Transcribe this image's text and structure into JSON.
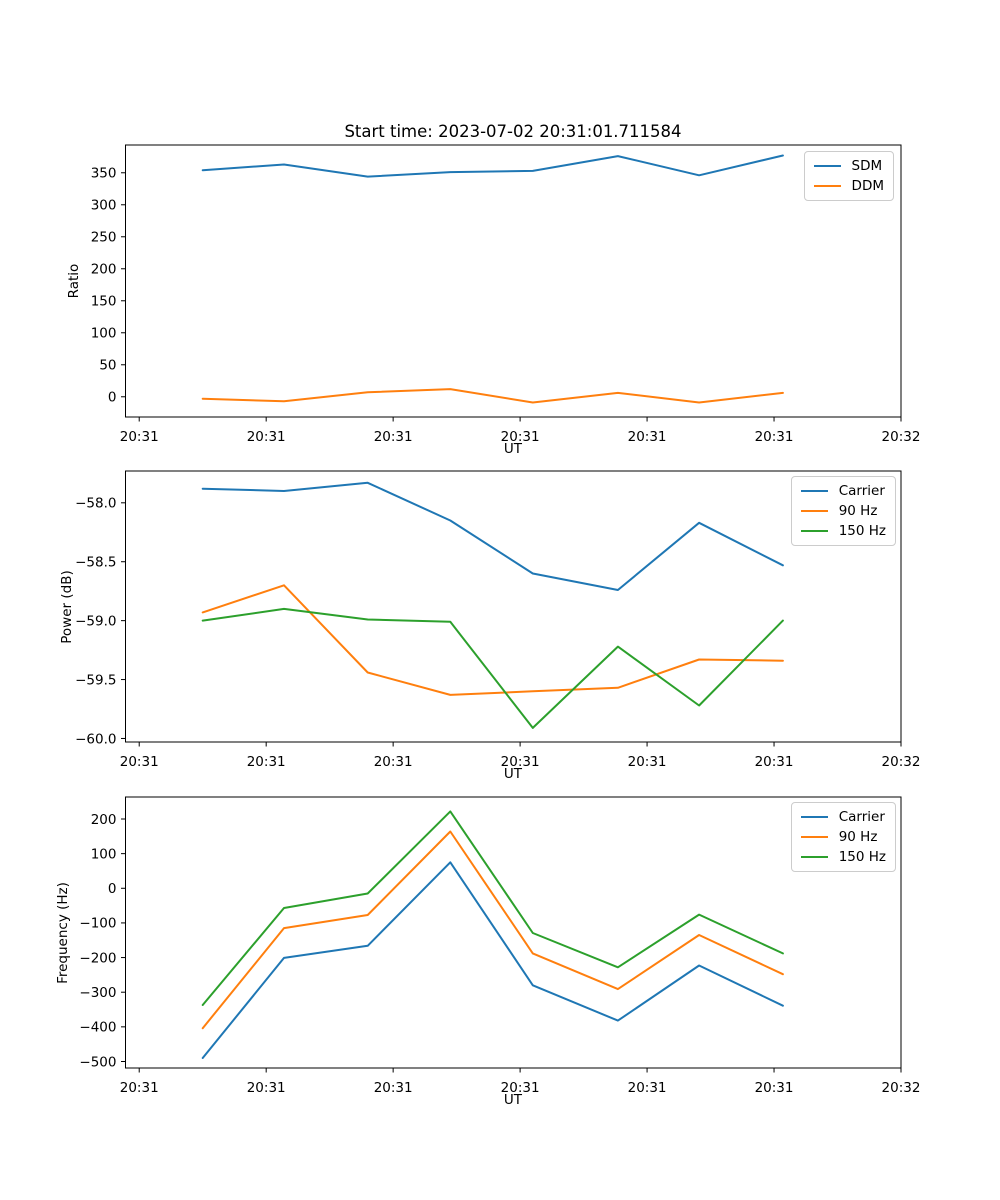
{
  "figure": {
    "title": "Start time: 2023-07-02 20:31:01.711584",
    "legend_border_color": "#cccccc",
    "spine_color": "#000000"
  },
  "chart_data": [
    {
      "type": "line",
      "name": "ratio",
      "title": "",
      "xlabel": "UT",
      "ylabel": "Ratio",
      "grid": false,
      "legend_position": "upper right",
      "x_range_seconds": [
        -1.08,
        60
      ],
      "x_tick_seconds": [
        0,
        10,
        20,
        30,
        40,
        50,
        60
      ],
      "x_tick_labels": [
        "20:31",
        "20:31",
        "20:31",
        "20:31",
        "20:31",
        "20:31",
        "20:32"
      ],
      "x_seconds": [
        5.0,
        11.4,
        18.0,
        24.5,
        31.0,
        37.7,
        44.1,
        50.7
      ],
      "ylim": [
        -31.6,
        393.4
      ],
      "yticks": [
        0,
        50,
        100,
        150,
        200,
        250,
        300,
        350
      ],
      "ytick_labels": [
        "0",
        "50",
        "100",
        "150",
        "200",
        "250",
        "300",
        "350"
      ],
      "series": [
        {
          "name": "SDM",
          "color": "#1f77b4",
          "values": [
            354,
            363,
            344,
            351,
            353,
            376,
            346,
            377
          ]
        },
        {
          "name": "DDM",
          "color": "#ff7f0e",
          "values": [
            -3,
            -7,
            7,
            12,
            -9,
            6,
            -9,
            6
          ]
        }
      ]
    },
    {
      "type": "line",
      "name": "power",
      "title": "",
      "xlabel": "UT",
      "ylabel": "Power (dB)",
      "grid": false,
      "legend_position": "upper right",
      "x_range_seconds": [
        -1.08,
        60
      ],
      "x_tick_seconds": [
        0,
        10,
        20,
        30,
        40,
        50,
        60
      ],
      "x_tick_labels": [
        "20:31",
        "20:31",
        "20:31",
        "20:31",
        "20:31",
        "20:31",
        "20:32"
      ],
      "x_seconds": [
        5.0,
        11.4,
        18.0,
        24.5,
        31.0,
        37.7,
        44.1,
        50.7
      ],
      "ylim": [
        -60.03,
        -57.73
      ],
      "yticks": [
        -58.0,
        -58.5,
        -59.0,
        -59.5,
        -60.0
      ],
      "ytick_labels": [
        "−58.0",
        "−58.5",
        "−59.0",
        "−59.5",
        "−60.0"
      ],
      "series": [
        {
          "name": "Carrier",
          "color": "#1f77b4",
          "values": [
            -57.88,
            -57.9,
            -57.83,
            -58.15,
            -58.6,
            -58.74,
            -58.17,
            -58.53
          ]
        },
        {
          "name": "90 Hz",
          "color": "#ff7f0e",
          "values": [
            -58.93,
            -58.7,
            -59.44,
            -59.63,
            -59.6,
            -59.57,
            -59.33,
            -59.34
          ]
        },
        {
          "name": "150 Hz",
          "color": "#2ca02c",
          "values": [
            -59.0,
            -58.9,
            -58.99,
            -59.01,
            -59.91,
            -59.22,
            -59.72,
            -59.0
          ]
        }
      ]
    },
    {
      "type": "line",
      "name": "frequency",
      "title": "",
      "xlabel": "UT",
      "ylabel": "Frequency (Hz)",
      "grid": false,
      "legend_position": "upper right",
      "x_range_seconds": [
        -1.08,
        60
      ],
      "x_tick_seconds": [
        0,
        10,
        20,
        30,
        40,
        50,
        60
      ],
      "x_tick_labels": [
        "20:31",
        "20:31",
        "20:31",
        "20:31",
        "20:31",
        "20:31",
        "20:32"
      ],
      "x_seconds": [
        5.0,
        11.4,
        18.0,
        24.5,
        31.0,
        37.7,
        44.1,
        50.7
      ],
      "ylim": [
        -518.8,
        263.5
      ],
      "yticks": [
        200,
        100,
        0,
        -100,
        -200,
        -300,
        -400,
        -500
      ],
      "ytick_labels": [
        "200",
        "100",
        "0",
        "−100",
        "−200",
        "−300",
        "−400",
        "−500"
      ],
      "series": [
        {
          "name": "Carrier",
          "color": "#1f77b4",
          "values": [
            -490,
            -201,
            -166,
            75,
            -280,
            -382,
            -223,
            -339
          ]
        },
        {
          "name": "90 Hz",
          "color": "#ff7f0e",
          "values": [
            -404,
            -115,
            -77,
            164,
            -188,
            -291,
            -135,
            -248
          ]
        },
        {
          "name": "150 Hz",
          "color": "#2ca02c",
          "values": [
            -337,
            -57,
            -15,
            222,
            -129,
            -228,
            -76,
            -188
          ]
        }
      ]
    }
  ]
}
